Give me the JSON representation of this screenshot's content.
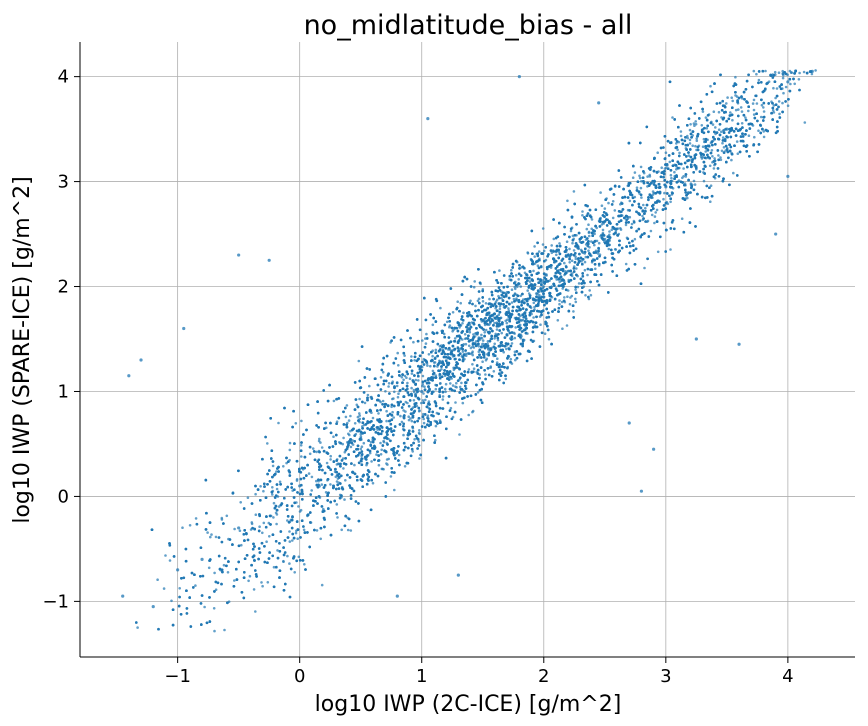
{
  "chart_data": {
    "type": "scatter",
    "title": "no_midlatitude_bias - all",
    "xlabel": "log10 IWP (2C-ICE) [g/m^2]",
    "ylabel": "log10 IWP (SPARE-ICE) [g/m^2]",
    "xlim": [
      -1.8,
      4.55
    ],
    "ylim": [
      -1.53,
      4.33
    ],
    "xticks": [
      -1,
      0,
      1,
      2,
      3,
      4
    ],
    "yticks": [
      -1,
      0,
      1,
      2,
      3,
      4
    ],
    "xtick_labels": [
      "−1",
      "0",
      "1",
      "2",
      "3",
      "4"
    ],
    "ytick_labels": [
      "−1",
      "0",
      "1",
      "2",
      "3",
      "4"
    ],
    "grid": true,
    "point_color": "#1f77b4",
    "series": [
      {
        "points": [
          [
            -1.45,
            -0.95
          ],
          [
            -1.2,
            -1.05
          ],
          [
            -1.0,
            -0.7
          ],
          [
            -0.8,
            -0.6
          ],
          [
            -0.5,
            -0.3
          ],
          [
            0.0,
            0.1
          ],
          [
            0.5,
            0.55
          ],
          [
            1.0,
            1.0
          ],
          [
            1.5,
            1.45
          ],
          [
            2.0,
            1.9
          ],
          [
            2.5,
            2.45
          ],
          [
            3.0,
            2.95
          ],
          [
            3.5,
            3.5
          ],
          [
            4.0,
            3.95
          ],
          [
            4.2,
            4.05
          ],
          [
            -1.4,
            1.15
          ],
          [
            -1.3,
            1.3
          ],
          [
            -0.95,
            1.6
          ],
          [
            -0.5,
            2.3
          ],
          [
            -0.25,
            2.25
          ],
          [
            1.05,
            3.6
          ],
          [
            1.8,
            4.0
          ],
          [
            2.45,
            3.75
          ],
          [
            2.8,
            0.05
          ],
          [
            2.9,
            0.45
          ],
          [
            3.6,
            1.45
          ],
          [
            3.9,
            2.5
          ],
          [
            4.0,
            3.05
          ],
          [
            0.8,
            -0.95
          ],
          [
            1.3,
            -0.75
          ],
          [
            2.7,
            0.7
          ],
          [
            3.25,
            1.5
          ]
        ]
      }
    ]
  }
}
